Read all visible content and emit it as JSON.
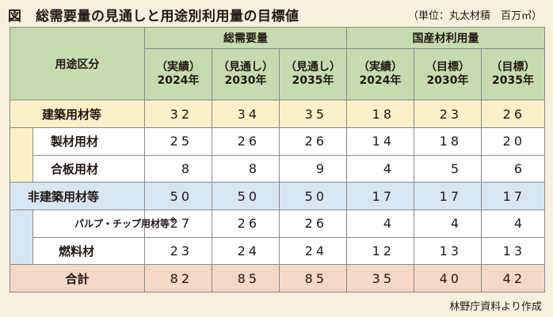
{
  "title": "図　総需要量の見通しと用途別利用量の目標値",
  "unit": "（単位：丸太材積　百万㎥）",
  "source": "林野庁資料より作成",
  "headers": {
    "group1": "総需要量",
    "group2": "国産材利用量",
    "category": "用途区分",
    "cols": [
      {
        "kind": "（実績）",
        "year": "2024年"
      },
      {
        "kind": "（見通し）",
        "year": "2030年"
      },
      {
        "kind": "（見通し）",
        "year": "2035年"
      },
      {
        "kind": "（実績）",
        "year": "2024年"
      },
      {
        "kind": "（目標）",
        "year": "2030年"
      },
      {
        "kind": "（目標）",
        "year": "2035年"
      }
    ]
  },
  "rows": [
    {
      "label": "建築用材等",
      "values": [
        "32",
        "34",
        "35",
        "18",
        "23",
        "26"
      ]
    },
    {
      "label": "製材用材",
      "values": [
        "25",
        "26",
        "26",
        "14",
        "18",
        "20"
      ]
    },
    {
      "label": "合板用材",
      "values": [
        "8",
        "8",
        "9",
        "4",
        "5",
        "6"
      ]
    },
    {
      "label": "非建築用材等",
      "values": [
        "50",
        "50",
        "50",
        "17",
        "17",
        "17"
      ]
    },
    {
      "label": "パルプ・チップ用材等",
      "note": "※",
      "values": [
        "27",
        "26",
        "26",
        "4",
        "4",
        "4"
      ]
    },
    {
      "label": "燃料材",
      "values": [
        "23",
        "24",
        "24",
        "12",
        "13",
        "13"
      ]
    },
    {
      "label": "合計",
      "values": [
        "82",
        "85",
        "85",
        "35",
        "40",
        "42"
      ]
    }
  ]
}
